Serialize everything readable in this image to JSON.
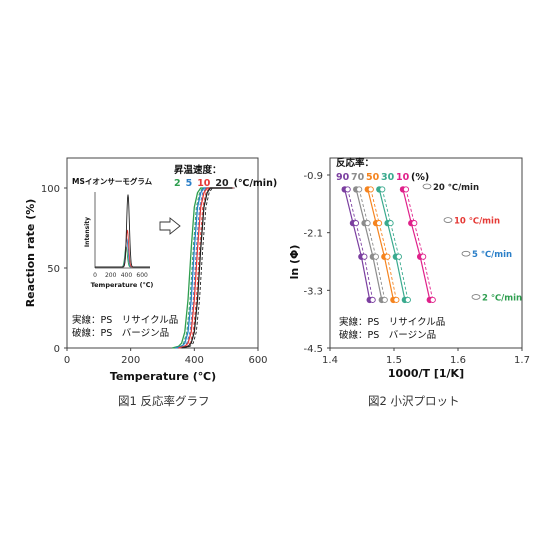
{
  "captions": {
    "left": "図1 反応率グラフ",
    "right": "図2 小沢プロット"
  },
  "chart_data": [
    {
      "type": "line",
      "xlabel": "Temperature (℃)",
      "ylabel": "Reaction rate (%)",
      "xlim": [
        0,
        600
      ],
      "ylim": [
        0,
        100
      ],
      "xticks": [
        "0",
        "200",
        "400",
        "600"
      ],
      "yticks": [
        "0",
        "50",
        "100"
      ],
      "legend_title": "昇温速度：",
      "legend_unit": "(℃/min)",
      "note_lines": [
        "実線：PS　リサイクル品",
        "破線：PS　バージン品"
      ],
      "series": [
        {
          "name": "2",
          "color": "#2e9e4f",
          "points": [
            [
              330,
              0
            ],
            [
              350,
              1
            ],
            [
              360,
              3
            ],
            [
              370,
              10
            ],
            [
              380,
              30
            ],
            [
              390,
              62
            ],
            [
              400,
              88
            ],
            [
              410,
              97
            ],
            [
              420,
              100
            ],
            [
              500,
              100
            ],
            [
              520,
              100
            ]
          ]
        },
        {
          "name": "5",
          "color": "#2a7fc8",
          "points": [
            [
              340,
              0
            ],
            [
              360,
              1
            ],
            [
              370,
              3
            ],
            [
              380,
              10
            ],
            [
              390,
              30
            ],
            [
              400,
              62
            ],
            [
              410,
              88
            ],
            [
              420,
              97
            ],
            [
              430,
              100
            ],
            [
              500,
              100
            ],
            [
              520,
              100
            ]
          ]
        },
        {
          "name": "10",
          "color": "#e53935",
          "points": [
            [
              350,
              0
            ],
            [
              370,
              1
            ],
            [
              380,
              3
            ],
            [
              390,
              10
            ],
            [
              400,
              30
            ],
            [
              410,
              62
            ],
            [
              420,
              88
            ],
            [
              430,
              97
            ],
            [
              440,
              100
            ],
            [
              500,
              100
            ],
            [
              520,
              100
            ]
          ]
        },
        {
          "name": "20",
          "color": "#222222",
          "points": [
            [
              360,
              0
            ],
            [
              380,
              1
            ],
            [
              390,
              3
            ],
            [
              400,
              10
            ],
            [
              410,
              30
            ],
            [
              420,
              62
            ],
            [
              430,
              88
            ],
            [
              440,
              97
            ],
            [
              450,
              100
            ],
            [
              500,
              100
            ],
            [
              520,
              100
            ]
          ]
        }
      ],
      "inset": {
        "title": "MSイオンサーモグラム",
        "xlabel": "Temperature (℃)",
        "ylabel": "Intensity",
        "xlim": [
          0,
          700
        ],
        "xticks": [
          "0",
          "200",
          "400",
          "600"
        ],
        "series": [
          {
            "name": "2",
            "color": "#2e9e4f",
            "peak": 395,
            "height": 0.28,
            "width": 16
          },
          {
            "name": "5",
            "color": "#2a7fc8",
            "peak": 405,
            "height": 0.38,
            "width": 16
          },
          {
            "name": "10",
            "color": "#e53935",
            "peak": 412,
            "height": 0.5,
            "width": 16
          },
          {
            "name": "20",
            "color": "#222222",
            "peak": 420,
            "height": 0.98,
            "width": 17
          }
        ]
      }
    },
    {
      "type": "scatter",
      "xlabel": "1000/T [1/K]",
      "ylabel": "ln (Φ)",
      "xlim": [
        1.4,
        1.7
      ],
      "ylim": [
        -4.5,
        -0.9
      ],
      "xticks": [
        "1.4",
        "1.5",
        "1.6",
        "1.7"
      ],
      "yticks": [
        "-0.9",
        "-2.1",
        "-3.3",
        "-4.5"
      ],
      "legend_title": "反応率：",
      "legend_unit": "(%)",
      "conversion_series": [
        {
          "name": "90",
          "color": "#7b3fa0",
          "points": [
            [
              1.423,
              -1.2
            ],
            [
              1.436,
              -1.9
            ],
            [
              1.449,
              -2.6
            ],
            [
              1.462,
              -3.5
            ]
          ]
        },
        {
          "name": "70",
          "color": "#8c8c8c",
          "points": [
            [
              1.441,
              -1.2
            ],
            [
              1.454,
              -1.9
            ],
            [
              1.467,
              -2.6
            ],
            [
              1.481,
              -3.5
            ]
          ]
        },
        {
          "name": "50",
          "color": "#f5841f",
          "points": [
            [
              1.459,
              -1.2
            ],
            [
              1.472,
              -1.9
            ],
            [
              1.485,
              -2.6
            ],
            [
              1.499,
              -3.5
            ]
          ]
        },
        {
          "name": "30",
          "color": "#3aaa8e",
          "points": [
            [
              1.477,
              -1.2
            ],
            [
              1.49,
              -1.9
            ],
            [
              1.503,
              -2.6
            ],
            [
              1.517,
              -3.5
            ]
          ]
        },
        {
          "name": "10",
          "color": "#e0218a",
          "points": [
            [
              1.514,
              -1.2
            ],
            [
              1.527,
              -1.9
            ],
            [
              1.541,
              -2.6
            ],
            [
              1.556,
              -3.5
            ]
          ]
        }
      ],
      "rate_labels": [
        {
          "text": "20 ℃/min",
          "color": "#222222",
          "y": -1.2
        },
        {
          "text": "10 ℃/min",
          "color": "#e53935",
          "y": -1.9
        },
        {
          "text": "5 ℃/min",
          "color": "#2a7fc8",
          "y": -2.6
        },
        {
          "text": "2 ℃/min",
          "color": "#2e9e4f",
          "y": -3.5
        }
      ],
      "note_lines": [
        "実線：PS　リサイクル品",
        "破線：PS　バージン品"
      ]
    }
  ]
}
